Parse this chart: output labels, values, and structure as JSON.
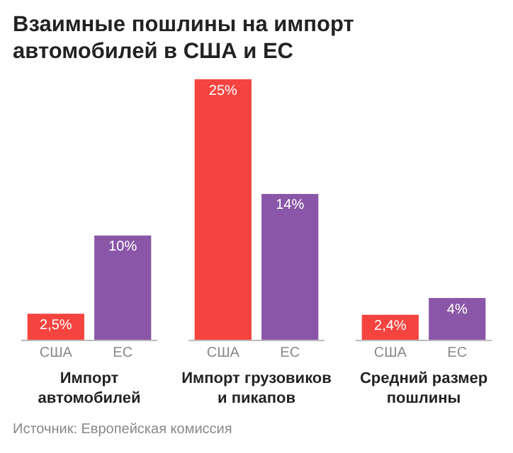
{
  "chart_data": {
    "type": "bar",
    "title": "Взаимные пошлины на импорт автомобилей в США и ЕС",
    "categories": [
      "Импорт автомобилей",
      "Импорт грузовиков и пикапов",
      "Средний размер пошлины"
    ],
    "series": [
      {
        "name": "США",
        "color": "#f5433f",
        "values": [
          2.5,
          25,
          2.4
        ],
        "value_labels": [
          "2,5%",
          "25%",
          "2,4%"
        ]
      },
      {
        "name": "ЕС",
        "color": "#8a57a8",
        "values": [
          10,
          14,
          4
        ],
        "value_labels": [
          "10%",
          "14%",
          "4%"
        ]
      }
    ],
    "legend": false,
    "annotations": [
      "Источник: Европейская комиссия"
    ]
  }
}
